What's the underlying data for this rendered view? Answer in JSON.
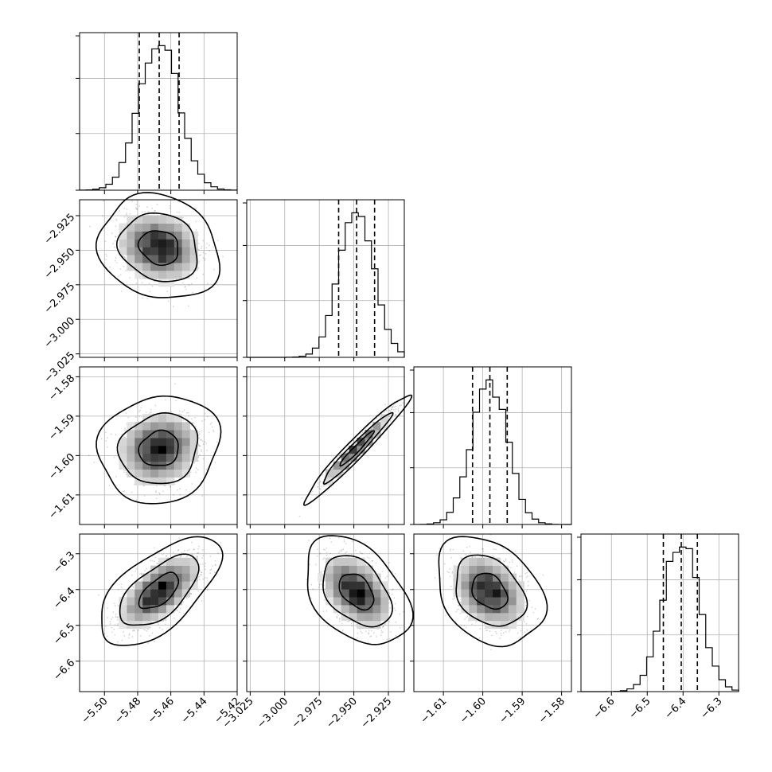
{
  "chart_data": {
    "type": "corner",
    "grid": true,
    "levels": [
      0.39,
      0.86,
      0.99
    ],
    "parameters": [
      {
        "range": [
          -5.515,
          -5.42
        ],
        "ticks": [
          -5.5,
          -5.48,
          -5.46,
          -5.44,
          -5.42
        ],
        "tick_labels": [
          "−5.50",
          "−5.48",
          "−5.46",
          "−5.44",
          "−5.42"
        ],
        "mean": -5.467,
        "sd": 0.012,
        "quantiles": [
          -5.479,
          -5.467,
          -5.455
        ]
      },
      {
        "range": [
          -3.0275,
          -2.9135
        ],
        "ticks": [
          -3.025,
          -3.0,
          -2.975,
          -2.95,
          -2.925
        ],
        "tick_labels": [
          "−3.025",
          "−3.000",
          "−2.975",
          "−2.950",
          "−2.925"
        ],
        "mean": -2.948,
        "sd": 0.0125,
        "quantiles": [
          -2.961,
          -2.948,
          -2.935
        ]
      },
      {
        "range": [
          -1.6175,
          -1.5775
        ],
        "ticks": [
          -1.61,
          -1.6,
          -1.59,
          -1.58
        ],
        "tick_labels": [
          "−1.61",
          "−1.60",
          "−1.59",
          "−1.58"
        ],
        "mean": -1.5983,
        "sd": 0.0045,
        "quantiles": [
          -1.6026,
          -1.5982,
          -1.5938
        ]
      },
      {
        "range": [
          -6.685,
          -6.245
        ],
        "ticks": [
          -6.6,
          -6.5,
          -6.4,
          -6.3
        ],
        "tick_labels": [
          "−6.6",
          "−6.5",
          "−6.4",
          "−6.3"
        ],
        "mean": -6.405,
        "sd": 0.05,
        "quantiles": [
          -6.455,
          -6.405,
          -6.36
        ]
      }
    ],
    "correlations": [
      {
        "pair": [
          1,
          0
        ],
        "rho": -0.15
      },
      {
        "pair": [
          2,
          0
        ],
        "rho": 0.1
      },
      {
        "pair": [
          2,
          1
        ],
        "rho": 0.97
      },
      {
        "pair": [
          3,
          0
        ],
        "rho": 0.62
      },
      {
        "pair": [
          3,
          1
        ],
        "rho": -0.4
      },
      {
        "pair": [
          3,
          2
        ],
        "rho": -0.3
      }
    ]
  }
}
